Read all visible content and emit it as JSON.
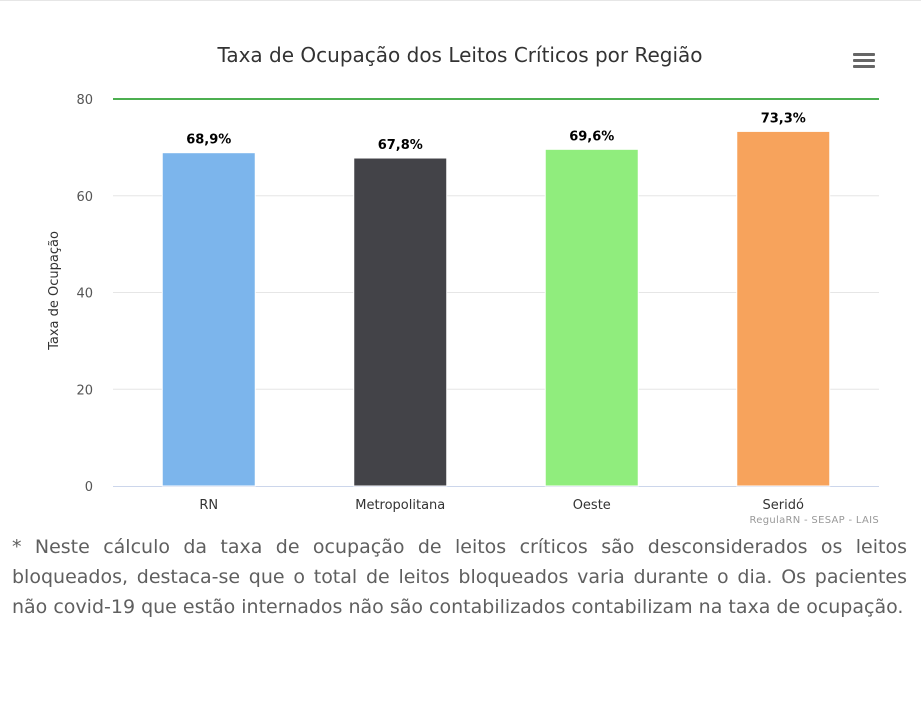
{
  "chart_data": {
    "type": "bar",
    "title": "Taxa de Ocupação dos Leitos Críticos por Região",
    "xlabel": "",
    "ylabel": "Taxa de Ocupação",
    "ylim": [
      0,
      80
    ],
    "yticks": [
      0,
      20,
      40,
      60,
      80
    ],
    "ytick_labels": [
      "0",
      "20",
      "40",
      "60",
      "80"
    ],
    "grid": true,
    "reference_line": {
      "value": 80,
      "color": "#4caf50"
    },
    "categories": [
      "RN",
      "Metropolitana",
      "Oeste",
      "Seridó"
    ],
    "values": [
      68.9,
      67.8,
      69.6,
      73.3
    ],
    "data_labels": [
      "68,9%",
      "67,8%",
      "69,6%",
      "73,3%"
    ],
    "colors": [
      "#7cb5ec",
      "#434348",
      "#90ed7d",
      "#f7a35c"
    ],
    "credits": "RegulaRN - SESAP - LAIS"
  },
  "menu": {
    "icon": "hamburger-menu-icon"
  },
  "footnote": "* Neste cálculo da taxa de ocupação de leitos críticos são desconsiderados os leitos bloqueados, destaca-se que o total de leitos bloqueados varia durante o dia. Os pacientes não covid-19 que estão internados não são contabilizados contabilizam na taxa de ocupação."
}
